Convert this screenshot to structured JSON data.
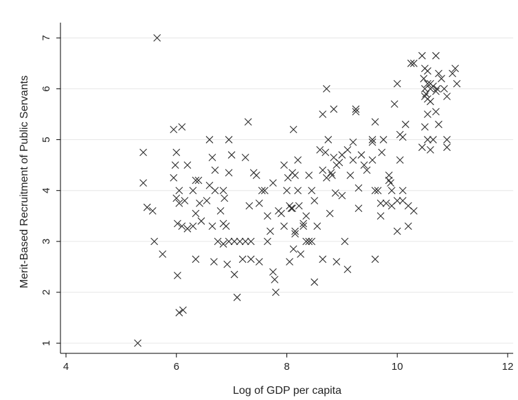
{
  "chart_data": {
    "type": "scatter",
    "title": "",
    "xlabel": "Log of GDP per capita",
    "ylabel": "Merit-Based Recruitment of Public Servants",
    "xlim": [
      3.9,
      12.1
    ],
    "ylim": [
      0.8,
      7.3
    ],
    "xticks": [
      4,
      6,
      8,
      10,
      12
    ],
    "yticks": [
      1,
      2,
      3,
      4,
      5,
      6,
      7
    ],
    "grid": true,
    "legend": "none",
    "colors": {
      "marker": "#2b2b2b",
      "grid": "#e6e6e6",
      "axis": "#000000",
      "background": "#ffffff"
    },
    "marker": "x",
    "series": [
      {
        "points": [
          [
            5.3,
            1.0
          ],
          [
            5.65,
            7.0
          ],
          [
            5.4,
            4.75
          ],
          [
            5.4,
            4.15
          ],
          [
            5.47,
            3.67
          ],
          [
            5.57,
            3.6
          ],
          [
            5.6,
            3.0
          ],
          [
            5.75,
            2.75
          ],
          [
            5.95,
            5.2
          ],
          [
            6.1,
            5.25
          ],
          [
            5.95,
            4.25
          ],
          [
            5.98,
            4.5
          ],
          [
            6.0,
            4.75
          ],
          [
            6.05,
            4.0
          ],
          [
            6.15,
            3.8
          ],
          [
            6.0,
            3.85
          ],
          [
            6.05,
            3.75
          ],
          [
            6.02,
            3.35
          ],
          [
            6.1,
            3.3
          ],
          [
            6.2,
            3.25
          ],
          [
            6.02,
            2.33
          ],
          [
            6.05,
            1.6
          ],
          [
            6.12,
            1.65
          ],
          [
            6.2,
            4.5
          ],
          [
            6.3,
            4.0
          ],
          [
            6.35,
            4.2
          ],
          [
            6.4,
            4.2
          ],
          [
            6.42,
            3.75
          ],
          [
            6.35,
            3.55
          ],
          [
            6.45,
            3.4
          ],
          [
            6.3,
            3.3
          ],
          [
            6.35,
            2.65
          ],
          [
            6.55,
            3.8
          ],
          [
            6.6,
            4.1
          ],
          [
            6.6,
            5.0
          ],
          [
            6.65,
            4.65
          ],
          [
            6.7,
            4.4
          ],
          [
            6.7,
            4.0
          ],
          [
            6.65,
            3.3
          ],
          [
            6.68,
            2.6
          ],
          [
            6.75,
            3.0
          ],
          [
            6.8,
            3.6
          ],
          [
            6.85,
            4.0
          ],
          [
            6.85,
            3.35
          ],
          [
            6.87,
            3.85
          ],
          [
            6.95,
            5.0
          ],
          [
            6.95,
            4.35
          ],
          [
            6.9,
            3.3
          ],
          [
            6.95,
            3.0
          ],
          [
            6.92,
            2.55
          ],
          [
            6.85,
            2.95
          ],
          [
            7.0,
            4.7
          ],
          [
            7.05,
            3.0
          ],
          [
            7.05,
            2.35
          ],
          [
            7.1,
            1.9
          ],
          [
            7.15,
            3.0
          ],
          [
            7.2,
            2.65
          ],
          [
            7.25,
            3.0
          ],
          [
            7.25,
            4.65
          ],
          [
            7.3,
            5.35
          ],
          [
            7.32,
            3.7
          ],
          [
            7.35,
            3.0
          ],
          [
            7.35,
            2.65
          ],
          [
            7.4,
            4.35
          ],
          [
            7.45,
            4.3
          ],
          [
            7.5,
            3.75
          ],
          [
            7.5,
            2.6
          ],
          [
            7.55,
            4.0
          ],
          [
            7.6,
            4.0
          ],
          [
            7.65,
            3.5
          ],
          [
            7.65,
            3.0
          ],
          [
            7.7,
            3.2
          ],
          [
            7.75,
            4.15
          ],
          [
            7.75,
            2.4
          ],
          [
            7.78,
            2.25
          ],
          [
            7.8,
            2.0
          ],
          [
            7.85,
            3.6
          ],
          [
            7.9,
            3.55
          ],
          [
            7.95,
            3.3
          ],
          [
            7.95,
            4.5
          ],
          [
            8.0,
            4.0
          ],
          [
            8.02,
            4.25
          ],
          [
            8.05,
            3.7
          ],
          [
            8.05,
            2.6
          ],
          [
            8.08,
            3.65
          ],
          [
            8.1,
            3.65
          ],
          [
            8.12,
            2.85
          ],
          [
            8.1,
            4.35
          ],
          [
            8.15,
            4.3
          ],
          [
            8.12,
            5.2
          ],
          [
            8.15,
            3.2
          ],
          [
            8.15,
            3.15
          ],
          [
            8.2,
            4.6
          ],
          [
            8.2,
            4.0
          ],
          [
            8.22,
            3.7
          ],
          [
            8.25,
            2.75
          ],
          [
            8.3,
            3.3
          ],
          [
            8.3,
            3.35
          ],
          [
            8.35,
            3.5
          ],
          [
            8.35,
            3.0
          ],
          [
            8.4,
            3.0
          ],
          [
            8.4,
            4.3
          ],
          [
            8.45,
            3.0
          ],
          [
            8.45,
            4.0
          ],
          [
            8.5,
            3.8
          ],
          [
            8.5,
            2.2
          ],
          [
            8.55,
            3.3
          ],
          [
            8.6,
            4.8
          ],
          [
            8.65,
            4.4
          ],
          [
            8.65,
            5.5
          ],
          [
            8.65,
            2.65
          ],
          [
            8.7,
            4.75
          ],
          [
            8.72,
            4.25
          ],
          [
            8.72,
            6.0
          ],
          [
            8.75,
            5.0
          ],
          [
            8.78,
            3.55
          ],
          [
            8.8,
            4.35
          ],
          [
            8.82,
            4.3
          ],
          [
            8.85,
            5.6
          ],
          [
            8.85,
            4.65
          ],
          [
            8.88,
            3.95
          ],
          [
            8.9,
            2.6
          ],
          [
            8.9,
            4.5
          ],
          [
            8.95,
            4.55
          ],
          [
            9.0,
            4.7
          ],
          [
            9.0,
            3.9
          ],
          [
            9.05,
            3.0
          ],
          [
            9.1,
            4.8
          ],
          [
            9.1,
            2.45
          ],
          [
            9.15,
            4.3
          ],
          [
            9.2,
            4.6
          ],
          [
            9.2,
            4.95
          ],
          [
            9.25,
            5.6
          ],
          [
            9.25,
            5.55
          ],
          [
            9.3,
            4.05
          ],
          [
            9.3,
            3.65
          ],
          [
            9.35,
            4.7
          ],
          [
            9.4,
            4.5
          ],
          [
            9.45,
            4.4
          ],
          [
            9.55,
            5.0
          ],
          [
            9.55,
            4.95
          ],
          [
            9.55,
            4.6
          ],
          [
            9.6,
            5.35
          ],
          [
            9.6,
            4.0
          ],
          [
            9.6,
            2.65
          ],
          [
            9.65,
            4.0
          ],
          [
            9.7,
            3.5
          ],
          [
            9.7,
            3.75
          ],
          [
            9.72,
            4.75
          ],
          [
            9.75,
            5.0
          ],
          [
            9.8,
            3.75
          ],
          [
            9.85,
            4.2
          ],
          [
            9.85,
            4.3
          ],
          [
            9.88,
            4.15
          ],
          [
            9.9,
            4.0
          ],
          [
            9.9,
            3.7
          ],
          [
            9.95,
            5.7
          ],
          [
            10.0,
            6.1
          ],
          [
            10.0,
            3.8
          ],
          [
            10.0,
            3.2
          ],
          [
            10.05,
            5.1
          ],
          [
            10.05,
            4.6
          ],
          [
            10.1,
            5.05
          ],
          [
            10.1,
            3.8
          ],
          [
            10.1,
            4.0
          ],
          [
            10.15,
            5.3
          ],
          [
            10.2,
            3.7
          ],
          [
            10.2,
            3.3
          ],
          [
            10.3,
            3.6
          ],
          [
            10.25,
            6.5
          ],
          [
            10.3,
            6.5
          ],
          [
            10.45,
            6.65
          ],
          [
            10.5,
            6.4
          ],
          [
            10.55,
            6.35
          ],
          [
            10.48,
            6.2
          ],
          [
            10.5,
            6.0
          ],
          [
            10.52,
            5.9
          ],
          [
            10.5,
            5.85
          ],
          [
            10.55,
            6.1
          ],
          [
            10.6,
            6.1
          ],
          [
            10.6,
            6.0
          ],
          [
            10.65,
            6.05
          ],
          [
            10.7,
            5.95
          ],
          [
            10.72,
            6.0
          ],
          [
            10.75,
            6.3
          ],
          [
            10.7,
            6.65
          ],
          [
            10.55,
            5.8
          ],
          [
            10.6,
            5.75
          ],
          [
            10.55,
            5.5
          ],
          [
            10.5,
            5.25
          ],
          [
            10.45,
            4.85
          ],
          [
            10.55,
            5.0
          ],
          [
            10.6,
            4.8
          ],
          [
            10.7,
            5.55
          ],
          [
            10.75,
            5.3
          ],
          [
            10.65,
            5.0
          ],
          [
            10.8,
            6.2
          ],
          [
            10.85,
            6.0
          ],
          [
            10.9,
            5.85
          ],
          [
            10.9,
            5.0
          ],
          [
            10.9,
            4.85
          ],
          [
            11.0,
            6.3
          ],
          [
            11.05,
            6.4
          ],
          [
            11.08,
            6.1
          ]
        ]
      }
    ]
  }
}
